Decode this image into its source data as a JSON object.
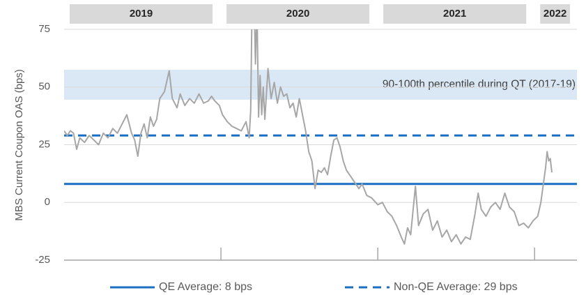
{
  "chart_data": {
    "type": "line",
    "y_axis_label": "MBS Current Coupon OAS (bps)",
    "periods": [
      "2019",
      "2020",
      "2021",
      "2022"
    ],
    "xlim": [
      2019.0,
      2022.27
    ],
    "xticks": [
      2020,
      2021,
      2022
    ],
    "ylim": [
      -25,
      75
    ],
    "yticks": [
      -25,
      0,
      25,
      50,
      75
    ],
    "grid": true,
    "color": "#a6a6a6",
    "band": {
      "label": "90-100th percentile during QT (2017-19)",
      "range": [
        44.5,
        57.5
      ],
      "color": "#dae8f5"
    },
    "reference_lines": [
      {
        "label": "QE Average: 8 bps",
        "value": 8,
        "color": "#1a6fc2",
        "style": "solid"
      },
      {
        "label": "Non-QE Average: 29 bps",
        "value": 29,
        "color": "#1a6fc2",
        "style": "dashed"
      }
    ],
    "x": [
      2019.0,
      2019.02,
      2019.04,
      2019.06,
      2019.08,
      2019.1,
      2019.13,
      2019.16,
      2019.19,
      2019.22,
      2019.25,
      2019.28,
      2019.31,
      2019.34,
      2019.37,
      2019.4,
      2019.43,
      2019.45,
      2019.47,
      2019.49,
      2019.51,
      2019.53,
      2019.55,
      2019.57,
      2019.59,
      2019.61,
      2019.64,
      2019.67,
      2019.69,
      2019.72,
      2019.74,
      2019.77,
      2019.8,
      2019.83,
      2019.86,
      2019.89,
      2019.92,
      2019.94,
      2019.96,
      2019.99,
      2020.01,
      2020.04,
      2020.07,
      2020.1,
      2020.13,
      2020.16,
      2020.18,
      2020.19,
      2020.2,
      2020.21,
      2020.22,
      2020.23,
      2020.24,
      2020.25,
      2020.26,
      2020.27,
      2020.28,
      2020.3,
      2020.32,
      2020.34,
      2020.36,
      2020.38,
      2020.4,
      2020.42,
      2020.44,
      2020.46,
      2020.48,
      2020.5,
      2020.52,
      2020.54,
      2020.56,
      2020.58,
      2020.6,
      2020.62,
      2020.64,
      2020.66,
      2020.68,
      2020.7,
      2020.72,
      2020.74,
      2020.76,
      2020.78,
      2020.8,
      2020.83,
      2020.86,
      2020.88,
      2020.9,
      2020.93,
      2020.96,
      2021.0,
      2021.03,
      2021.06,
      2021.09,
      2021.12,
      2021.15,
      2021.17,
      2021.19,
      2021.21,
      2021.23,
      2021.24,
      2021.26,
      2021.29,
      2021.32,
      2021.35,
      2021.38,
      2021.41,
      2021.44,
      2021.47,
      2021.5,
      2021.53,
      2021.56,
      2021.59,
      2021.62,
      2021.64,
      2021.66,
      2021.69,
      2021.72,
      2021.75,
      2021.78,
      2021.81,
      2021.84,
      2021.87,
      2021.9,
      2021.93,
      2021.96,
      2021.99,
      2022.02,
      2022.04,
      2022.06,
      2022.07,
      2022.08,
      2022.09,
      2022.1,
      2022.11
    ],
    "values": [
      31,
      29,
      31,
      30,
      23,
      28,
      26,
      29,
      27,
      25,
      30,
      28,
      32,
      30,
      34,
      38,
      30,
      27,
      20,
      30,
      34,
      28,
      37,
      33,
      36,
      45,
      48,
      57,
      45,
      41,
      47,
      42,
      45,
      43,
      47,
      43,
      44,
      46,
      44,
      42,
      38,
      35,
      33,
      32,
      31,
      35,
      28,
      40,
      95,
      95,
      60,
      85,
      37,
      55,
      38,
      50,
      36,
      58,
      45,
      52,
      43,
      50,
      46,
      47,
      41,
      43,
      37,
      45,
      38,
      31,
      22,
      18,
      6,
      14,
      13,
      15,
      12,
      20,
      27,
      28,
      24,
      18,
      14,
      11,
      8,
      6,
      8,
      3,
      2,
      -1,
      0,
      -4,
      -6,
      -10,
      -15,
      -18,
      -11,
      -14,
      0,
      7,
      -10,
      -5,
      -3,
      -12,
      -8,
      -15,
      -12,
      -17,
      -14,
      -18,
      -15,
      -16,
      -5,
      4,
      -3,
      -6,
      -2,
      0,
      -3,
      4,
      -2,
      -4,
      -10,
      -9,
      -11,
      -8,
      -6,
      0,
      10,
      15,
      22,
      18,
      19,
      13
    ]
  }
}
